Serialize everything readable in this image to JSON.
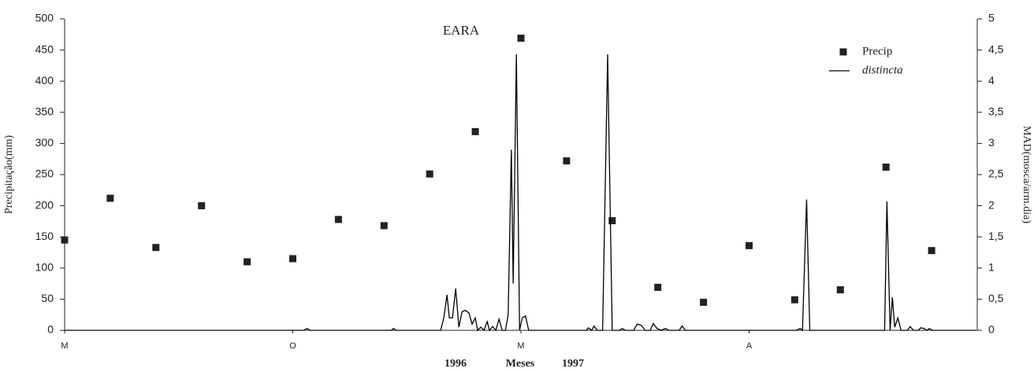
{
  "chart_data": {
    "type": "line",
    "title": "EARA",
    "xlabel": "Meses",
    "annotations": [
      "1996",
      "1997"
    ],
    "ylabel": "Precipitação(mm)",
    "y2label": "MAD(mosca/arm.dia)",
    "xlim": [
      0,
      20
    ],
    "xticks": [
      {
        "value": 0,
        "label": "M"
      },
      {
        "value": 5,
        "label": "O"
      },
      {
        "value": 10,
        "label": "M"
      },
      {
        "value": 15,
        "label": "A"
      }
    ],
    "ylim": [
      0,
      500
    ],
    "yticks": [
      0,
      50,
      100,
      150,
      200,
      250,
      300,
      350,
      400,
      450,
      500
    ],
    "y2lim": [
      0,
      5
    ],
    "y2ticks": [
      0,
      {
        "value": 0.5,
        "label": "0,5"
      },
      1,
      {
        "value": 1.5,
        "label": "1,5"
      },
      2,
      {
        "value": 2.5,
        "label": "2,5"
      },
      3,
      {
        "value": 3.5,
        "label": "3,5"
      },
      4,
      {
        "value": 4.5,
        "label": "4,5"
      },
      5
    ],
    "legend": "upper right",
    "series": [
      {
        "name": "Precip",
        "type": "scatter",
        "color": "#222222",
        "x": [
          0,
          1,
          2,
          3,
          4,
          5,
          6,
          7,
          8,
          9,
          10,
          11,
          12,
          13,
          14,
          15,
          16,
          17,
          18,
          19
        ],
        "values": [
          145,
          212,
          133,
          200,
          110,
          115,
          178,
          168,
          251,
          319,
          469,
          272,
          176,
          69,
          45,
          136,
          49,
          65,
          262,
          128
        ]
      },
      {
        "name": "distincta",
        "type": "line",
        "axis": "y2",
        "color": "#000000",
        "x": [
          0,
          5.24,
          5.31,
          5.38,
          7.16,
          7.21,
          7.26,
          8.24,
          8.31,
          8.38,
          8.43,
          8.5,
          8.57,
          8.64,
          8.71,
          8.78,
          8.86,
          8.93,
          9.0,
          9.05,
          9.12,
          9.19,
          9.26,
          9.31,
          9.38,
          9.45,
          9.52,
          9.59,
          9.66,
          9.72,
          9.79,
          9.83,
          9.9,
          9.97,
          10.03,
          10.1,
          10.17,
          11.43,
          11.48,
          11.55,
          11.6,
          11.67,
          11.79,
          11.9,
          12.0,
          12.16,
          12.22,
          12.29,
          12.47,
          12.55,
          12.64,
          12.72,
          12.83,
          12.9,
          12.98,
          13.07,
          13.17,
          13.24,
          13.47,
          13.53,
          13.6,
          16.03,
          16.12,
          16.17,
          16.26,
          16.33,
          17.97,
          18.02,
          18.09,
          18.14,
          18.19,
          18.26,
          18.33,
          18.47,
          18.53,
          18.6,
          18.71,
          18.76,
          18.83,
          18.9,
          18.95,
          19.02,
          19.97
        ],
        "values": [
          0,
          0,
          0.03,
          0,
          0,
          0.03,
          0,
          0,
          0.2,
          0.57,
          0.2,
          0.2,
          0.67,
          0.05,
          0.3,
          0.32,
          0.28,
          0.1,
          0.2,
          0,
          0.05,
          0,
          0.14,
          0,
          0.06,
          0,
          0.18,
          0,
          0,
          0.25,
          2.9,
          0.75,
          4.43,
          0,
          0.2,
          0.23,
          0,
          0,
          0.04,
          0,
          0.07,
          0,
          0,
          4.43,
          0,
          0,
          0.03,
          0,
          0,
          0.1,
          0.08,
          0,
          0,
          0.11,
          0.03,
          0,
          0.03,
          0,
          0,
          0.07,
          0,
          0,
          0.03,
          0,
          2.1,
          0,
          0,
          2.07,
          0,
          0.53,
          0.05,
          0.2,
          0,
          0,
          0.06,
          0,
          0,
          0.04,
          0.03,
          0,
          0.03,
          0,
          0
        ]
      }
    ]
  }
}
